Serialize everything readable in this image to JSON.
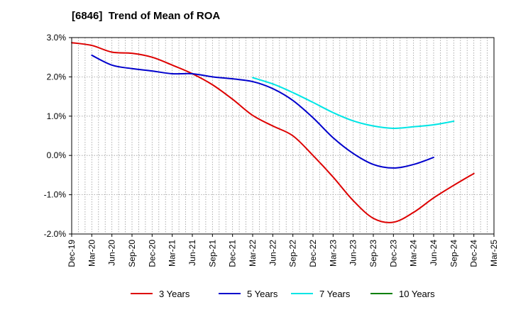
{
  "chart_data": {
    "type": "line",
    "title": "[6846]  Trend of Mean of ROA",
    "xlabel": "",
    "ylabel": "",
    "ylim": [
      -2.0,
      3.0
    ],
    "y_ticks": [
      "3.0%",
      "2.0%",
      "1.0%",
      "0.0%",
      "-1.0%",
      "-2.0%"
    ],
    "y_tick_values": [
      3.0,
      2.0,
      1.0,
      0.0,
      -1.0,
      -2.0
    ],
    "x_ticks": [
      "Dec-19",
      "Mar-20",
      "Jun-20",
      "Sep-20",
      "Dec-20",
      "Mar-21",
      "Jun-21",
      "Sep-21",
      "Dec-21",
      "Mar-22",
      "Jun-22",
      "Sep-22",
      "Dec-22",
      "Mar-23",
      "Jun-23",
      "Sep-23",
      "Dec-23",
      "Mar-24",
      "Jun-24",
      "Sep-24",
      "Dec-24",
      "Mar-25"
    ],
    "grid": "vertical dotted monthly lines, horizontal dotted lines at each y tick",
    "legend_position": "bottom",
    "series": [
      {
        "name": "3 Years",
        "color": "#dd0000",
        "start_index": 0,
        "values": [
          2.87,
          2.8,
          2.63,
          2.6,
          2.5,
          2.3,
          2.08,
          1.8,
          1.43,
          1.02,
          0.75,
          0.5,
          0.0,
          -0.55,
          -1.15,
          -1.6,
          -1.7,
          -1.45,
          -1.08,
          -0.76,
          -0.46
        ]
      },
      {
        "name": "5 Years",
        "color": "#0000cc",
        "start_index": 1,
        "values": [
          2.55,
          2.3,
          2.21,
          2.15,
          2.08,
          2.08,
          2.0,
          1.95,
          1.88,
          1.7,
          1.4,
          0.96,
          0.45,
          0.05,
          -0.23,
          -0.32,
          -0.23,
          -0.05
        ]
      },
      {
        "name": "7 Years",
        "color": "#00e5e5",
        "start_index": 9,
        "values": [
          1.98,
          1.82,
          1.6,
          1.35,
          1.09,
          0.88,
          0.75,
          0.69,
          0.73,
          0.78,
          0.87
        ]
      },
      {
        "name": "10 Years",
        "color": "#008000",
        "start_index": 0,
        "values": []
      }
    ]
  }
}
